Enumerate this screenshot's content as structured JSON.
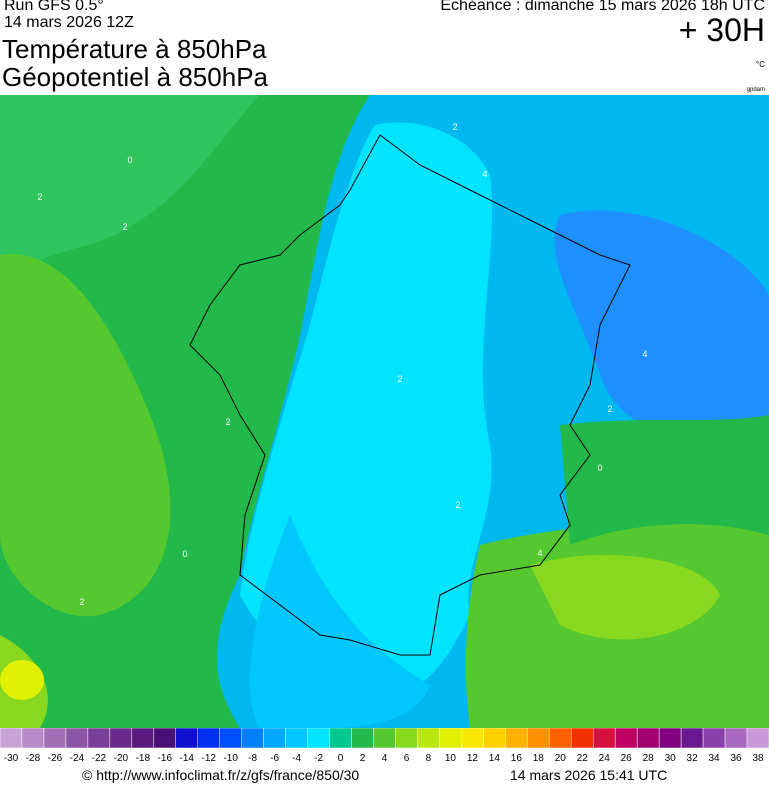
{
  "header": {
    "run": "Run GFS 0.5°",
    "run_date": "14 mars 2026 12Z",
    "title": "Température à 850hPa",
    "subtitle": "Géopotentiel à 850hPa",
    "valid": "Echéance : dimanche 15 mars 2026 18h UTC",
    "lead": "+ 30H",
    "unit": "°C",
    "contour_unit": "gpdam"
  },
  "map": {
    "contour_labels": [
      2,
      2,
      0,
      2,
      2,
      4,
      2,
      2,
      0,
      2,
      0,
      2,
      4,
      4
    ]
  },
  "colorbar": {
    "ticks": [
      -30,
      -28,
      -26,
      -24,
      -22,
      -20,
      -18,
      -16,
      -14,
      -12,
      -10,
      -8,
      -6,
      -4,
      -2,
      0,
      2,
      4,
      6,
      8,
      10,
      12,
      14,
      16,
      18,
      20,
      22,
      24,
      26,
      28,
      30,
      32,
      34,
      36,
      38
    ],
    "colors": [
      "#c9a3d6",
      "#b58ac6",
      "#a06fb5",
      "#8c55a6",
      "#7a3f98",
      "#6a2a8c",
      "#5a1a80",
      "#4a1076",
      "#1010d0",
      "#0030f0",
      "#0050ff",
      "#0080ff",
      "#00a8ff",
      "#00c8ff",
      "#00e4ff",
      "#00c890",
      "#22b84a",
      "#55c830",
      "#88d820",
      "#b8e810",
      "#e0f000",
      "#f8e800",
      "#ffd000",
      "#ffb000",
      "#ff9000",
      "#ff6000",
      "#f03000",
      "#d81040",
      "#c00060",
      "#a00070",
      "#800080",
      "#6a1a90",
      "#8a40a8",
      "#a868c0",
      "#c898d8"
    ]
  },
  "footer": {
    "url": "© http://www.infoclimat.fr/z/gfs/france/850/30",
    "generated": "14 mars 2026 15:41 UTC"
  }
}
